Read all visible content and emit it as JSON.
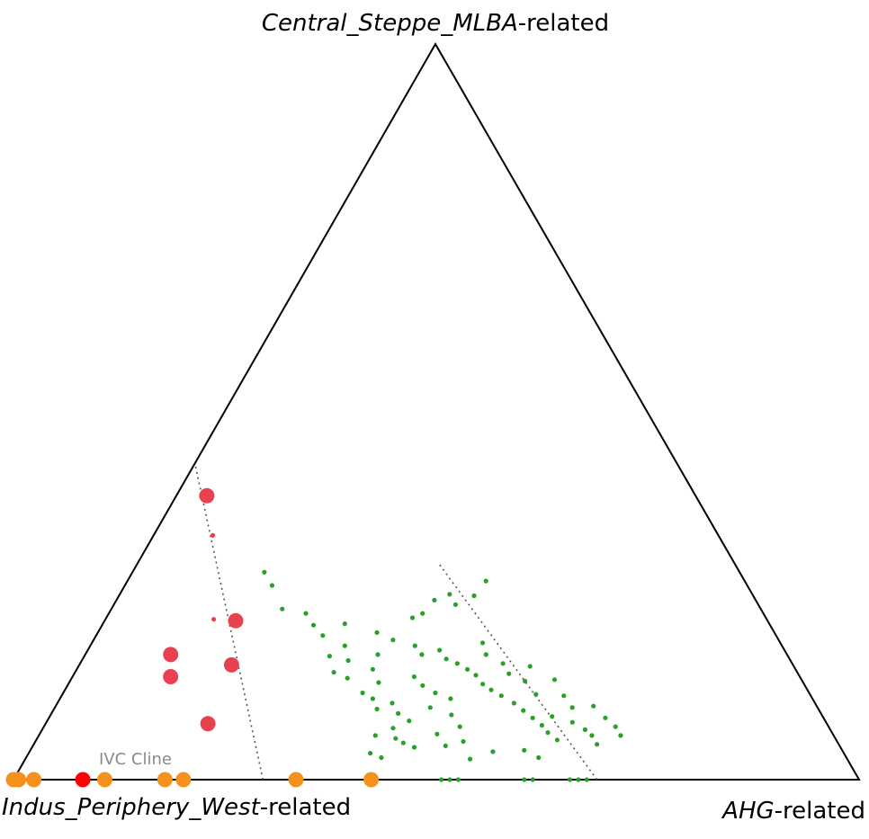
{
  "chart_data": {
    "type": "scatter",
    "subtype": "ternary",
    "vertices": {
      "top": {
        "name": "Central_Steppe_MLBA",
        "suffix": "-related"
      },
      "left": {
        "name": "Indus_Periphery_West",
        "suffix": "-related"
      },
      "right": {
        "name": "AHG",
        "suffix": "-related"
      }
    },
    "annotation": "IVC Cline",
    "grid": false,
    "legend": "none",
    "colors": {
      "orange": "#f5921e",
      "red": "#ff0000",
      "pink_red": "#e8414f",
      "green": "#2aa02a",
      "frame": "#000000",
      "guide": "#555555"
    },
    "units": "fractions: s = Central_Steppe_MLBA-related, a = AHG-related (Indus_Periphery_West-related = 1 - s - a)",
    "reference_lines": [
      {
        "style": "dotted",
        "from": {
          "s": 0.0,
          "a": 0.295
        },
        "to": {
          "s": 0.43,
          "a": 0.0
        }
      },
      {
        "style": "dotted",
        "from": {
          "s": 0.0,
          "a": 0.69
        },
        "to": {
          "s": 0.295,
          "a": 0.355
        }
      }
    ],
    "series": [
      {
        "color": "orange",
        "size": "large",
        "points": [
          {
            "s": 0.0,
            "a": 0.0
          },
          {
            "s": 0.0,
            "a": 0.006
          },
          {
            "s": 0.0,
            "a": 0.024
          },
          {
            "s": 0.0,
            "a": 0.108
          },
          {
            "s": 0.0,
            "a": 0.179
          },
          {
            "s": 0.0,
            "a": 0.201
          },
          {
            "s": 0.0,
            "a": 0.334
          },
          {
            "s": 0.0,
            "a": 0.423
          }
        ]
      },
      {
        "color": "red",
        "size": "large",
        "points": [
          {
            "s": 0.0,
            "a": 0.082
          }
        ]
      },
      {
        "color": "pink_red",
        "size": "large",
        "points": [
          {
            "s": 0.386,
            "a": 0.036
          },
          {
            "s": 0.216,
            "a": 0.155
          },
          {
            "s": 0.17,
            "a": 0.101
          },
          {
            "s": 0.156,
            "a": 0.18
          },
          {
            "s": 0.14,
            "a": 0.116
          },
          {
            "s": 0.076,
            "a": 0.192
          }
        ]
      },
      {
        "color": "pink_red",
        "size": "small",
        "points": [
          {
            "s": 0.332,
            "a": 0.07
          },
          {
            "s": 0.218,
            "a": 0.128
          }
        ]
      },
      {
        "color": "green",
        "size": "small",
        "points": [
          {
            "s": 0.282,
            "a": 0.156
          },
          {
            "s": 0.264,
            "a": 0.174
          },
          {
            "s": 0.232,
            "a": 0.202
          },
          {
            "s": 0.226,
            "a": 0.233
          },
          {
            "s": 0.21,
            "a": 0.25
          },
          {
            "s": 0.196,
            "a": 0.268
          },
          {
            "s": 0.212,
            "a": 0.286
          },
          {
            "s": 0.182,
            "a": 0.301
          },
          {
            "s": 0.168,
            "a": 0.29
          },
          {
            "s": 0.162,
            "a": 0.315
          },
          {
            "s": 0.146,
            "a": 0.306
          },
          {
            "s": 0.138,
            "a": 0.326
          },
          {
            "s": 0.22,
            "a": 0.362
          },
          {
            "s": 0.244,
            "a": 0.376
          },
          {
            "s": 0.226,
            "a": 0.371
          },
          {
            "s": 0.252,
            "a": 0.39
          },
          {
            "s": 0.238,
            "a": 0.404
          },
          {
            "s": 0.25,
            "a": 0.42
          },
          {
            "s": 0.17,
            "a": 0.346
          },
          {
            "s": 0.15,
            "a": 0.35
          },
          {
            "s": 0.132,
            "a": 0.366
          },
          {
            "s": 0.118,
            "a": 0.354
          },
          {
            "s": 0.11,
            "a": 0.37
          },
          {
            "s": 0.096,
            "a": 0.382
          },
          {
            "s": 0.104,
            "a": 0.396
          },
          {
            "s": 0.09,
            "a": 0.41
          },
          {
            "s": 0.08,
            "a": 0.428
          },
          {
            "s": 0.07,
            "a": 0.414
          },
          {
            "s": 0.06,
            "a": 0.398
          },
          {
            "s": 0.056,
            "a": 0.424
          },
          {
            "s": 0.05,
            "a": 0.436
          },
          {
            "s": 0.044,
            "a": 0.452
          },
          {
            "s": 0.036,
            "a": 0.404
          },
          {
            "s": 0.03,
            "a": 0.42
          },
          {
            "s": 0.14,
            "a": 0.404
          },
          {
            "s": 0.128,
            "a": 0.42
          },
          {
            "s": 0.118,
            "a": 0.44
          },
          {
            "s": 0.11,
            "a": 0.462
          },
          {
            "s": 0.098,
            "a": 0.444
          },
          {
            "s": 0.088,
            "a": 0.474
          },
          {
            "s": 0.072,
            "a": 0.492
          },
          {
            "s": 0.062,
            "a": 0.47
          },
          {
            "s": 0.052,
            "a": 0.506
          },
          {
            "s": 0.046,
            "a": 0.488
          },
          {
            "s": 0.17,
            "a": 0.398
          },
          {
            "s": 0.182,
            "a": 0.384
          },
          {
            "s": 0.176,
            "a": 0.416
          },
          {
            "s": 0.164,
            "a": 0.43
          },
          {
            "s": 0.158,
            "a": 0.446
          },
          {
            "s": 0.15,
            "a": 0.462
          },
          {
            "s": 0.142,
            "a": 0.476
          },
          {
            "s": 0.13,
            "a": 0.49
          },
          {
            "s": 0.122,
            "a": 0.504
          },
          {
            "s": 0.114,
            "a": 0.52
          },
          {
            "s": 0.104,
            "a": 0.54
          },
          {
            "s": 0.094,
            "a": 0.556
          },
          {
            "s": 0.084,
            "a": 0.572
          },
          {
            "s": 0.074,
            "a": 0.588
          },
          {
            "s": 0.064,
            "a": 0.6
          },
          {
            "s": 0.054,
            "a": 0.616
          },
          {
            "s": 0.038,
            "a": 0.548
          },
          {
            "s": 0.028,
            "a": 0.526
          },
          {
            "s": 0.158,
            "a": 0.5
          },
          {
            "s": 0.144,
            "a": 0.514
          },
          {
            "s": 0.134,
            "a": 0.538
          },
          {
            "s": 0.116,
            "a": 0.56
          },
          {
            "s": 0.098,
            "a": 0.612
          },
          {
            "s": 0.086,
            "a": 0.594
          },
          {
            "s": 0.078,
            "a": 0.622
          },
          {
            "s": 0.068,
            "a": 0.642
          },
          {
            "s": 0.06,
            "a": 0.654
          },
          {
            "s": 0.048,
            "a": 0.666
          },
          {
            "s": 0.04,
            "a": 0.584
          },
          {
            "s": 0.03,
            "a": 0.606
          },
          {
            "s": 0.19,
            "a": 0.354
          },
          {
            "s": 0.2,
            "a": 0.33
          },
          {
            "s": 0.186,
            "a": 0.462
          },
          {
            "s": 0.17,
            "a": 0.474
          },
          {
            "s": 0.154,
            "a": 0.534
          },
          {
            "s": 0.136,
            "a": 0.572
          },
          {
            "s": 0.114,
            "a": 0.594
          },
          {
            "s": 0.1,
            "a": 0.636
          },
          {
            "s": 0.084,
            "a": 0.658
          },
          {
            "s": 0.072,
            "a": 0.676
          },
          {
            "s": 0.06,
            "a": 0.688
          },
          {
            "s": 0.27,
            "a": 0.424
          },
          {
            "s": 0.0,
            "a": 0.506
          },
          {
            "s": 0.0,
            "a": 0.516
          },
          {
            "s": 0.0,
            "a": 0.526
          },
          {
            "s": 0.0,
            "a": 0.604
          },
          {
            "s": 0.0,
            "a": 0.614
          },
          {
            "s": 0.0,
            "a": 0.658
          },
          {
            "s": 0.0,
            "a": 0.668
          },
          {
            "s": 0.0,
            "a": 0.678
          }
        ]
      }
    ]
  }
}
